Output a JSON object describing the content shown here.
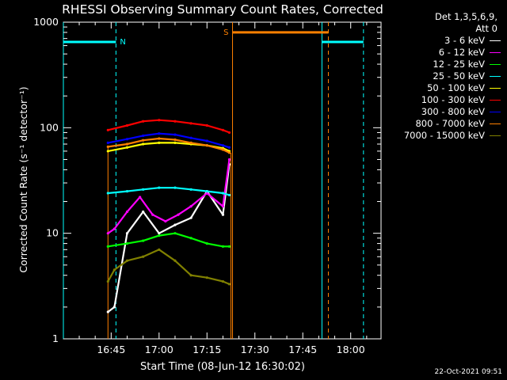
{
  "chart_data": {
    "type": "line",
    "title": "RHESSI Observing Summary Count Rates, Corrected",
    "xlabel": "Start Time (08-Jun-12 16:30:02)",
    "ylabel": "Corrected Count Rate (s⁻¹ detector⁻¹)",
    "x_range": [
      "16:30:02",
      "18:09:30"
    ],
    "x_ticks": [
      "16:45",
      "17:00",
      "17:15",
      "17:30",
      "17:45",
      "18:00"
    ],
    "y_scale": "log",
    "ylim": [
      1,
      1000
    ],
    "y_ticks": [
      "1",
      "10",
      "100",
      "1000"
    ],
    "legend_title": "Det 1,3,5,6,9, Att 0",
    "legend_title_lines": [
      "Det 1,3,5,6,9,",
      "Att 0"
    ],
    "legend_position": "right",
    "grid": false,
    "data_window": {
      "start": "16:44:00",
      "end": "17:22:30"
    },
    "series": [
      {
        "name": "3 - 6 keV",
        "color": "#ffffff",
        "x": [
          "16:44",
          "16:46",
          "16:50",
          "16:55",
          "17:00",
          "17:05",
          "17:10",
          "17:15",
          "17:20",
          "17:22"
        ],
        "y": [
          1.8,
          2.0,
          10,
          16,
          10,
          12,
          14,
          25,
          15,
          45
        ]
      },
      {
        "name": "6 - 12 keV",
        "color": "#ff00ff",
        "x": [
          "16:44",
          "16:46",
          "16:50",
          "16:54",
          "16:58",
          "17:02",
          "17:06",
          "17:10",
          "17:15",
          "17:20",
          "17:22"
        ],
        "y": [
          10,
          11,
          16,
          22,
          15,
          13,
          15,
          18,
          24,
          18,
          50
        ]
      },
      {
        "name": "12 - 25 keV",
        "color": "#00ff00",
        "x": [
          "16:44",
          "16:50",
          "16:55",
          "17:00",
          "17:05",
          "17:10",
          "17:15",
          "17:20",
          "17:22"
        ],
        "y": [
          7.5,
          8,
          8.5,
          9.5,
          10,
          9,
          8,
          7.5,
          7.5
        ]
      },
      {
        "name": "25 - 50 keV",
        "color": "#00ffff",
        "x": [
          "16:44",
          "16:50",
          "16:55",
          "17:00",
          "17:05",
          "17:10",
          "17:15",
          "17:20",
          "17:22"
        ],
        "y": [
          24,
          25,
          26,
          27,
          27,
          26,
          25,
          24,
          23
        ]
      },
      {
        "name": "50 - 100 keV",
        "color": "#ffff00",
        "x": [
          "16:44",
          "16:50",
          "16:55",
          "17:00",
          "17:05",
          "17:10",
          "17:15",
          "17:20",
          "17:22"
        ],
        "y": [
          60,
          65,
          70,
          72,
          72,
          70,
          68,
          64,
          60
        ]
      },
      {
        "name": "100 - 300 keV",
        "color": "#ff0000",
        "x": [
          "16:44",
          "16:50",
          "16:55",
          "17:00",
          "17:05",
          "17:10",
          "17:15",
          "17:20",
          "17:22"
        ],
        "y": [
          95,
          105,
          115,
          118,
          115,
          110,
          105,
          95,
          90
        ]
      },
      {
        "name": "300 - 800 keV",
        "color": "#0000ff",
        "x": [
          "16:44",
          "16:50",
          "16:55",
          "17:00",
          "17:05",
          "17:10",
          "17:15",
          "17:20",
          "17:22"
        ],
        "y": [
          72,
          78,
          84,
          88,
          86,
          80,
          75,
          68,
          65
        ]
      },
      {
        "name": "800 - 7000 keV",
        "color": "#ff8000",
        "x": [
          "16:44",
          "16:50",
          "16:55",
          "17:00",
          "17:05",
          "17:10",
          "17:15",
          "17:20",
          "17:22"
        ],
        "y": [
          66,
          70,
          76,
          79,
          77,
          72,
          68,
          62,
          58
        ]
      },
      {
        "name": "7000 - 15000 keV",
        "color": "#808000",
        "x": [
          "16:44",
          "16:46",
          "16:50",
          "16:55",
          "17:00",
          "17:05",
          "17:10",
          "17:15",
          "17:20",
          "17:22"
        ],
        "y": [
          3.5,
          4.5,
          5.5,
          6,
          7,
          5.5,
          4,
          3.8,
          3.5,
          3.3
        ]
      }
    ],
    "markers": [
      {
        "label": "N",
        "color": "#00ffff",
        "start": "16:30:02",
        "end": "16:46:30",
        "level": 650
      },
      {
        "label": "",
        "color": "#00ffff",
        "start": "17:51:00",
        "end": "18:04:00",
        "level": 650
      },
      {
        "label": "S",
        "color": "#ff8000",
        "start": "17:23:00",
        "end": "17:53:00",
        "level": 800
      }
    ]
  },
  "timestamp": "22-Oct-2021 09:51"
}
